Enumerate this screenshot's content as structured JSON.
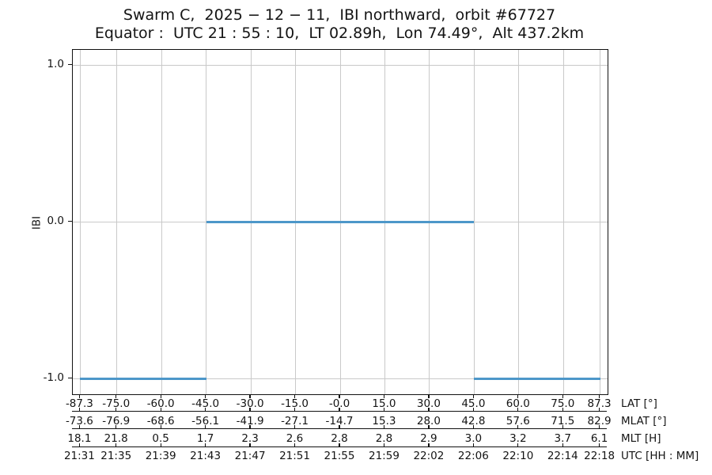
{
  "chart_data": {
    "type": "line",
    "title": "Swarm C,  2025 − 12 − 11,  IBI northward,  orbit #67727",
    "subtitle": "Equator :  UTC 21 : 55 : 10,  LT 02.89h,  Lon 74.49°,  Alt 437.2km",
    "ylabel": "IBI",
    "ylim": [
      -1.1,
      1.1
    ],
    "yticks": [
      1.0,
      0.0,
      -1.0
    ],
    "ytick_labels": [
      "1.0",
      "0.0",
      "-1.0"
    ],
    "xlim": [
      -89.8,
      89.8
    ],
    "x_unit": "geographic latitude, degrees",
    "xticks": [
      -87.3,
      -75.0,
      -60.0,
      -45.0,
      -30.0,
      -15.0,
      0.0,
      15.0,
      30.0,
      45.0,
      60.0,
      75.0,
      87.3
    ],
    "grid": true,
    "legend": "none",
    "axis_rows": [
      {
        "label": "LAT [°]",
        "values": [
          "-87.3",
          "-75.0",
          "-60.0",
          "-45.0",
          "-30.0",
          "-15.0",
          "-0.0",
          "15.0",
          "30.0",
          "45.0",
          "60.0",
          "75.0",
          "87.3"
        ]
      },
      {
        "label": "MLAT [°]",
        "values": [
          "-73.6",
          "-76.9",
          "-68.6",
          "-56.1",
          "-41.9",
          "-27.1",
          "-14.7",
          "15.3",
          "28.0",
          "42.8",
          "57.6",
          "71.5",
          "82.9"
        ]
      },
      {
        "label": "MLT [H]",
        "values": [
          "18.1",
          "21.8",
          "0.5",
          "1.7",
          "2.3",
          "2.6",
          "2.8",
          "2.8",
          "2.9",
          "3.0",
          "3.2",
          "3.7",
          "6.1"
        ]
      },
      {
        "label": "UTC [HH : MM]",
        "values": [
          "21:31",
          "21:35",
          "21:39",
          "21:43",
          "21:47",
          "21:51",
          "21:55",
          "21:59",
          "22:02",
          "22:06",
          "22:10",
          "22:14",
          "22:18"
        ]
      }
    ],
    "series": [
      {
        "name": "IBI",
        "color": "#4d97c9",
        "segments": [
          {
            "x_start": -87.3,
            "x_end": -45.0,
            "y": -1.0
          },
          {
            "x_start": -45.0,
            "x_end": 45.0,
            "y": 0.0
          },
          {
            "x_start": 45.0,
            "x_end": 87.3,
            "y": -1.0
          }
        ]
      }
    ],
    "colors": {
      "line": "#4d97c9",
      "grid": "#c9c9c9",
      "spine": "#111111",
      "text": "#141414",
      "background": "#ffffff"
    }
  }
}
